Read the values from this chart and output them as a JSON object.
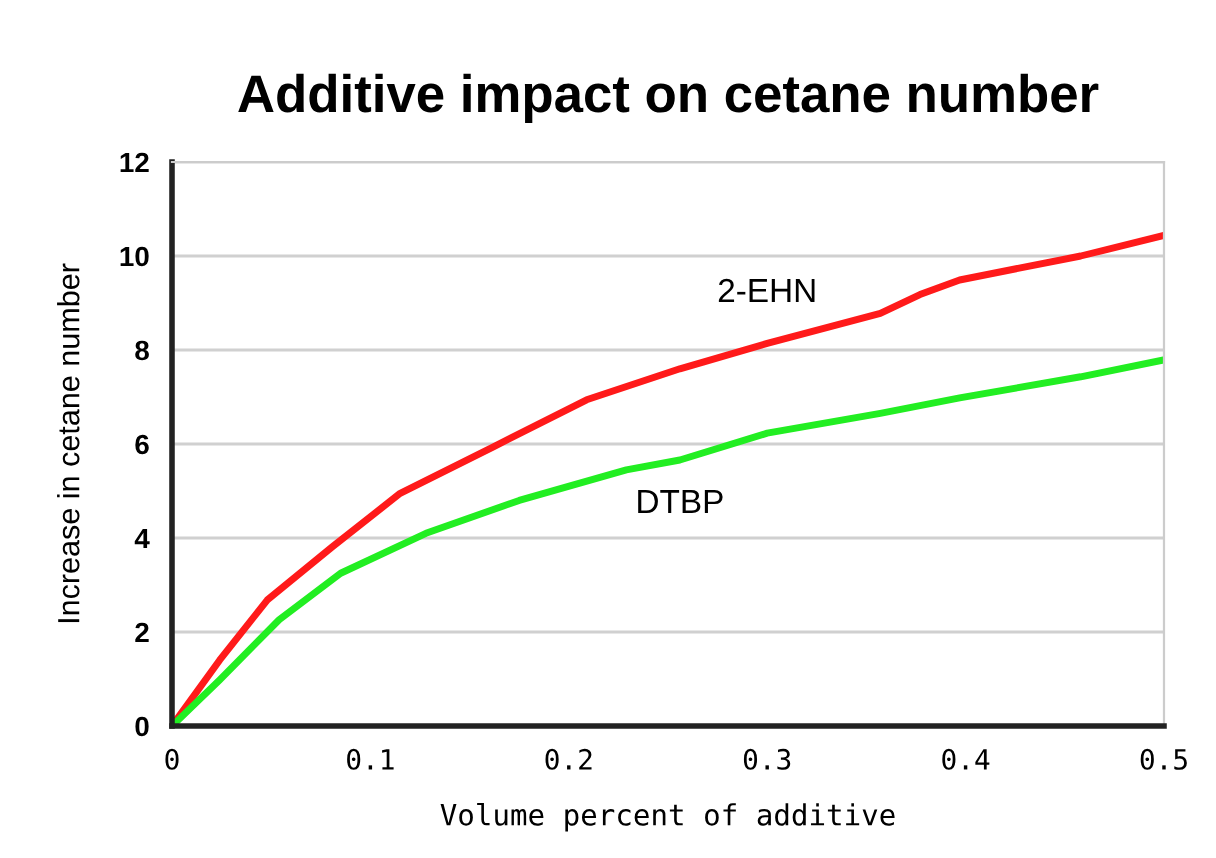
{
  "chart_data": {
    "type": "line",
    "title": "Additive impact on cetane number",
    "xlabel": "Volume percent of additive",
    "ylabel": "Increase in cetane number",
    "xlim": [
      0,
      0.5
    ],
    "xticks": [
      0,
      0.1,
      0.2,
      0.3,
      0.4,
      0.5
    ],
    "ylim": [
      0,
      12
    ],
    "yticks": [
      0,
      2,
      4,
      6,
      8,
      10,
      12
    ],
    "grid": "y",
    "legend": false,
    "marker": "none",
    "line_style": "solid",
    "series": [
      {
        "name": "2-EHN",
        "color": "#ff1a1a",
        "x": [
          0,
          0.024,
          0.048,
          0.081,
          0.115,
          0.162,
          0.209,
          0.256,
          0.3,
          0.357,
          0.377,
          0.397,
          0.458,
          0.5
        ],
        "values": [
          0,
          1.4,
          2.68,
          3.82,
          4.95,
          5.94,
          6.94,
          7.6,
          8.14,
          8.78,
          9.18,
          9.49,
          10.0,
          10.44
        ]
      },
      {
        "name": "DTBP",
        "color": "#22ee22",
        "x": [
          0,
          0.024,
          0.054,
          0.085,
          0.128,
          0.175,
          0.229,
          0.256,
          0.3,
          0.357,
          0.397,
          0.458,
          0.5
        ],
        "values": [
          0,
          0.98,
          2.26,
          3.25,
          4.1,
          4.8,
          5.45,
          5.66,
          6.23,
          6.65,
          6.98,
          7.43,
          7.79
        ]
      }
    ]
  }
}
